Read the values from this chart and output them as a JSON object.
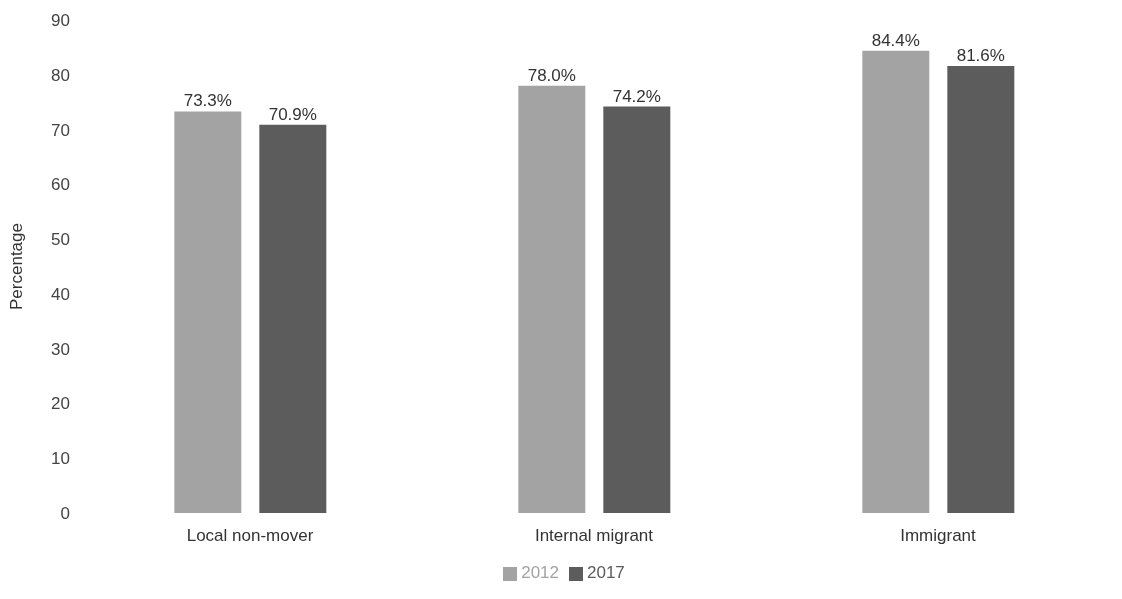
{
  "chart_data": {
    "type": "bar",
    "ylabel": "Percentage",
    "categories": [
      "Local non-mover",
      "Internal migrant",
      "Immigrant"
    ],
    "series": [
      {
        "name": "2012",
        "color": "#a3a3a3",
        "values": [
          73.3,
          78.0,
          84.4
        ],
        "value_labels": [
          "73.3%",
          "78.0%",
          "84.4%"
        ]
      },
      {
        "name": "2017",
        "color": "#5c5c5c",
        "values": [
          70.9,
          74.2,
          81.6
        ],
        "value_labels": [
          "70.9%",
          "74.2%",
          "81.6%"
        ]
      }
    ],
    "ylim": [
      0,
      90
    ],
    "yticks": [
      0,
      10,
      20,
      30,
      40,
      50,
      60,
      70,
      80,
      90
    ],
    "grid": false,
    "legend": "bottom"
  }
}
